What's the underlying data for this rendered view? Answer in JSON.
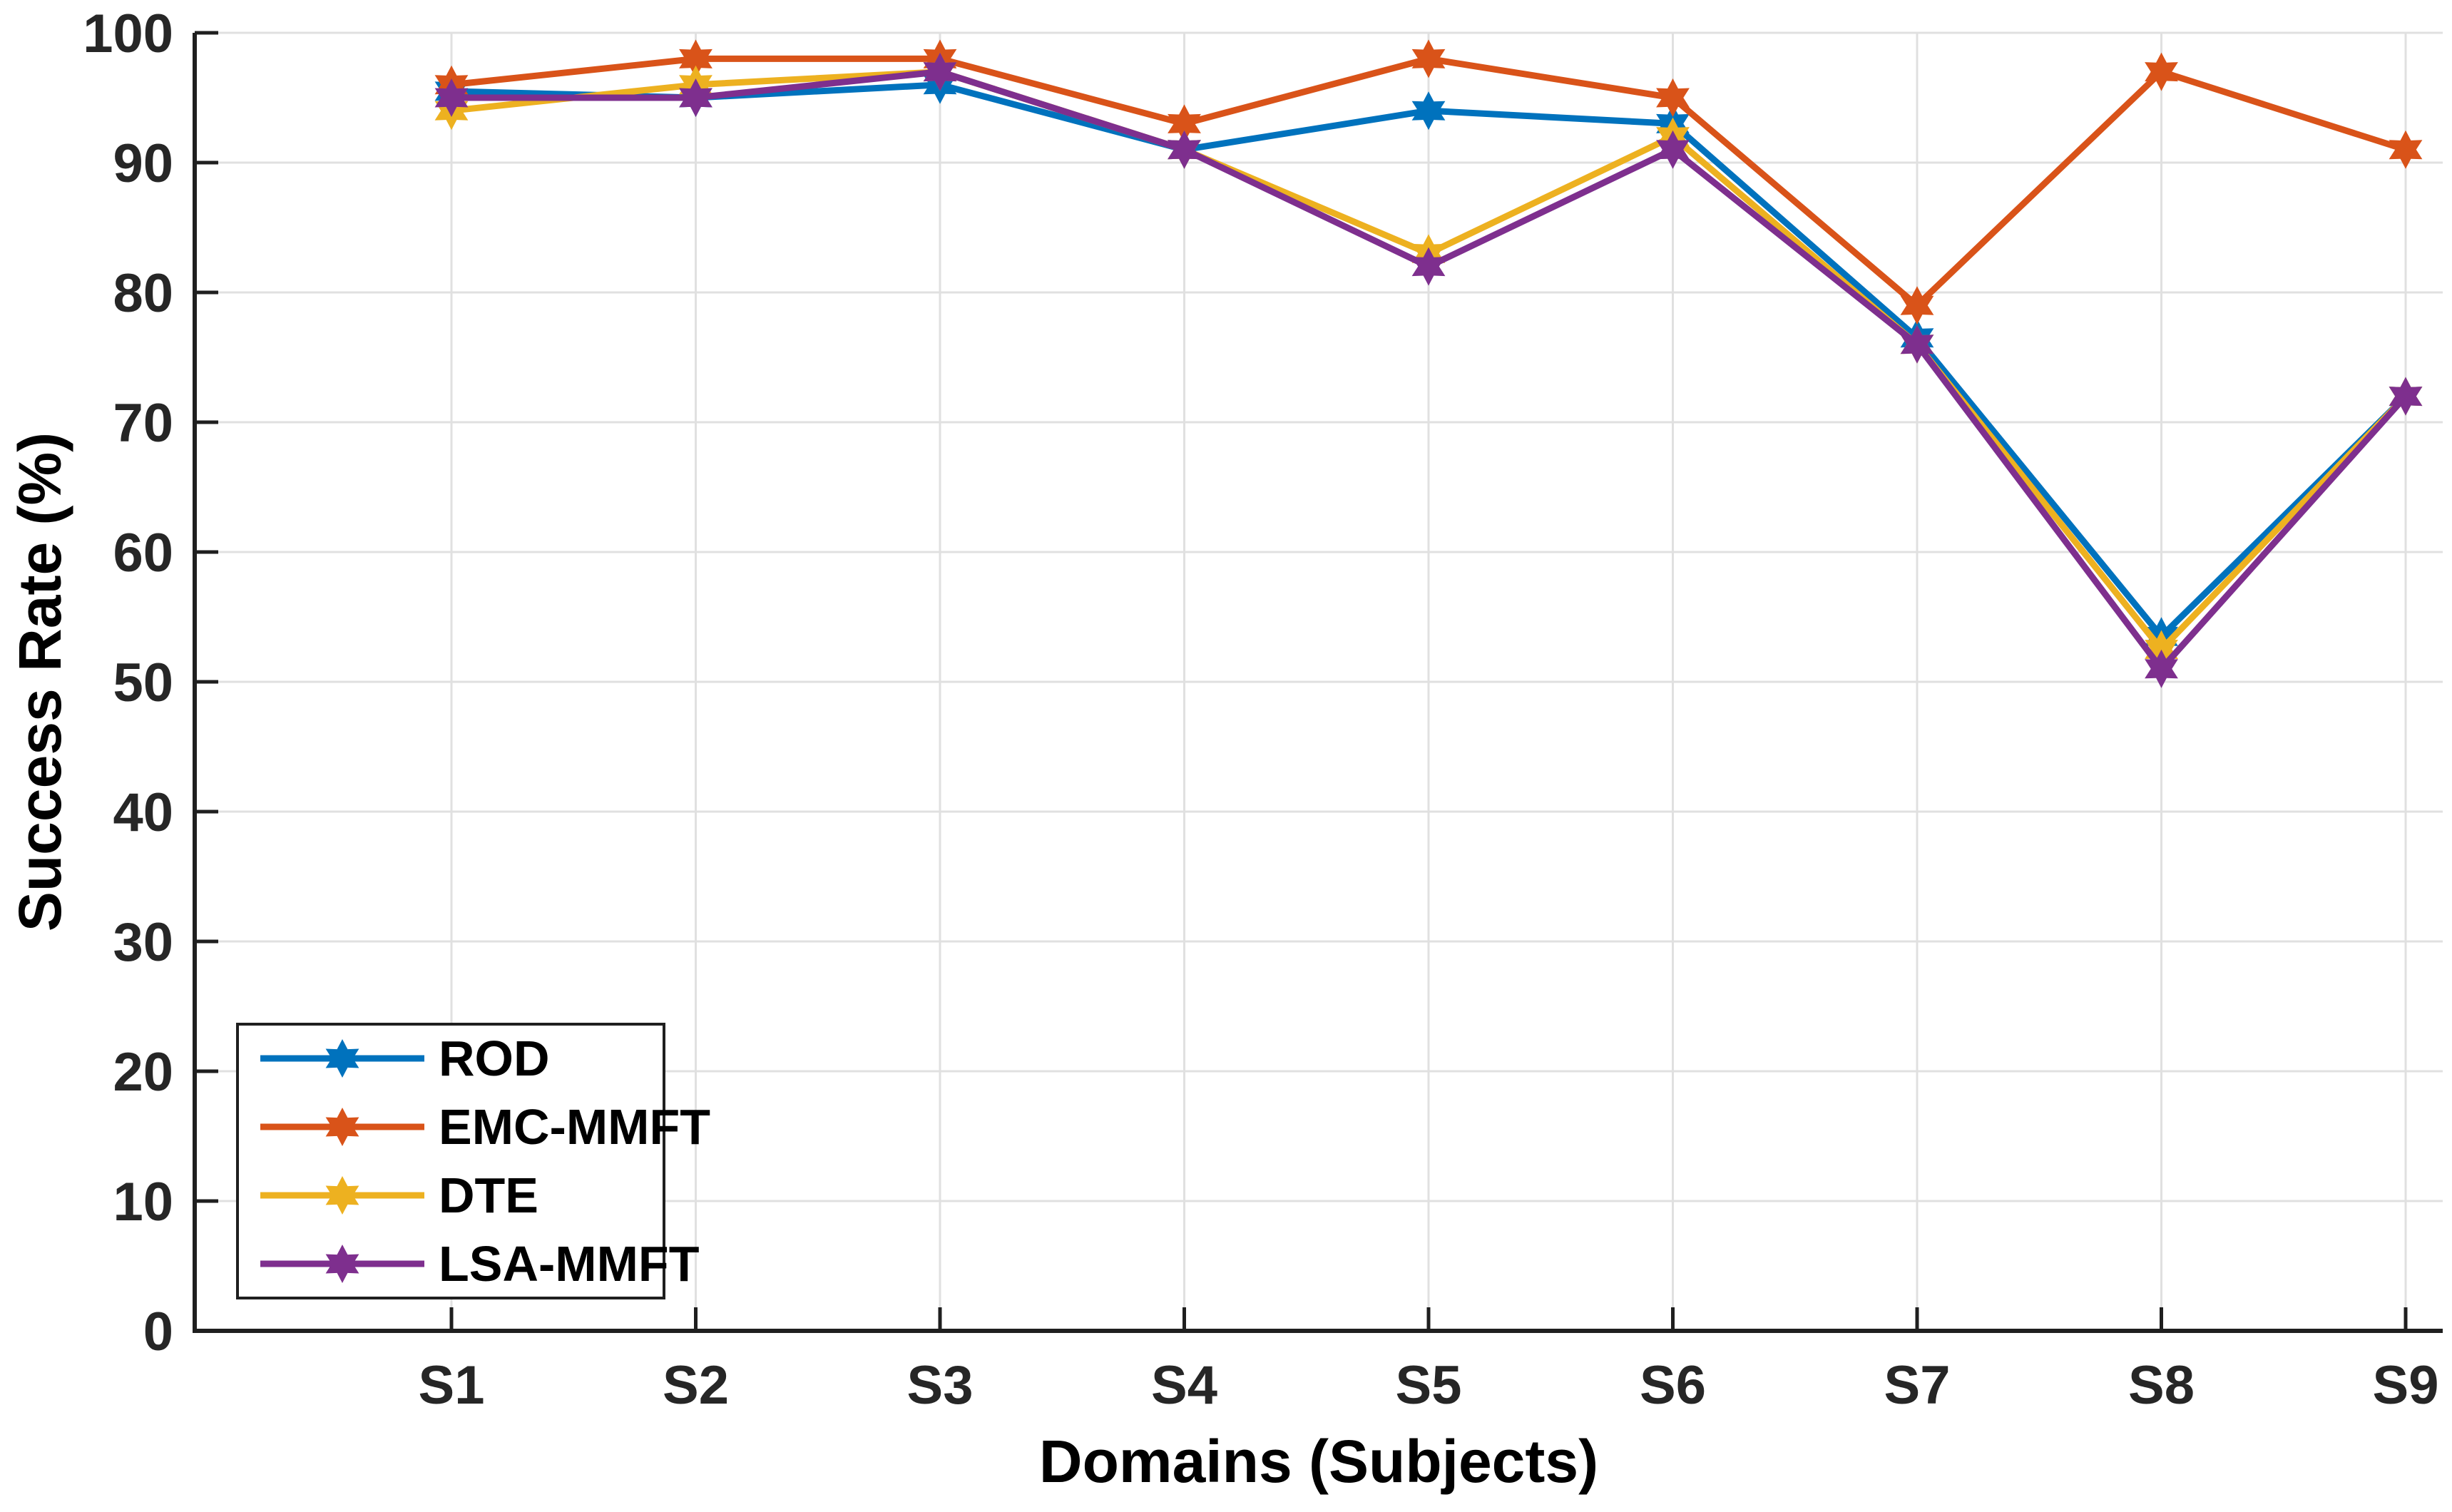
{
  "figure": {
    "background": "#ffffff",
    "axis_color": "#1f1f1f",
    "grid_color": "#e0e0e0"
  },
  "chart_data": {
    "type": "line",
    "title": "",
    "xlabel": "Domains (Subjects)",
    "ylabel": "Success Rate (%)",
    "categories": [
      "S1",
      "S2",
      "S3",
      "S4",
      "S5",
      "S6",
      "S7",
      "S8",
      "S9"
    ],
    "ylim": [
      0,
      100
    ],
    "yticks": [
      0,
      10,
      20,
      30,
      40,
      50,
      60,
      70,
      80,
      90,
      100
    ],
    "grid": true,
    "legend_position": "lower-left",
    "marker": "hexagram",
    "line_width": 9,
    "series": [
      {
        "name": "ROD",
        "color": "#0072BD",
        "values": [
          95.5,
          95,
          96,
          91,
          94,
          93,
          76.5,
          53.5,
          72
        ]
      },
      {
        "name": "EMC-MMFT",
        "color": "#D95319",
        "values": [
          96,
          98,
          98,
          93,
          98,
          95,
          79,
          97,
          91
        ]
      },
      {
        "name": "DTE",
        "color": "#EDB120",
        "values": [
          94,
          96,
          97,
          91,
          83,
          92,
          76,
          52.5,
          72
        ]
      },
      {
        "name": "LSA-MMFT",
        "color": "#7E2F8E",
        "values": [
          95,
          95,
          97,
          91,
          82,
          91,
          76,
          51,
          72
        ]
      }
    ]
  }
}
